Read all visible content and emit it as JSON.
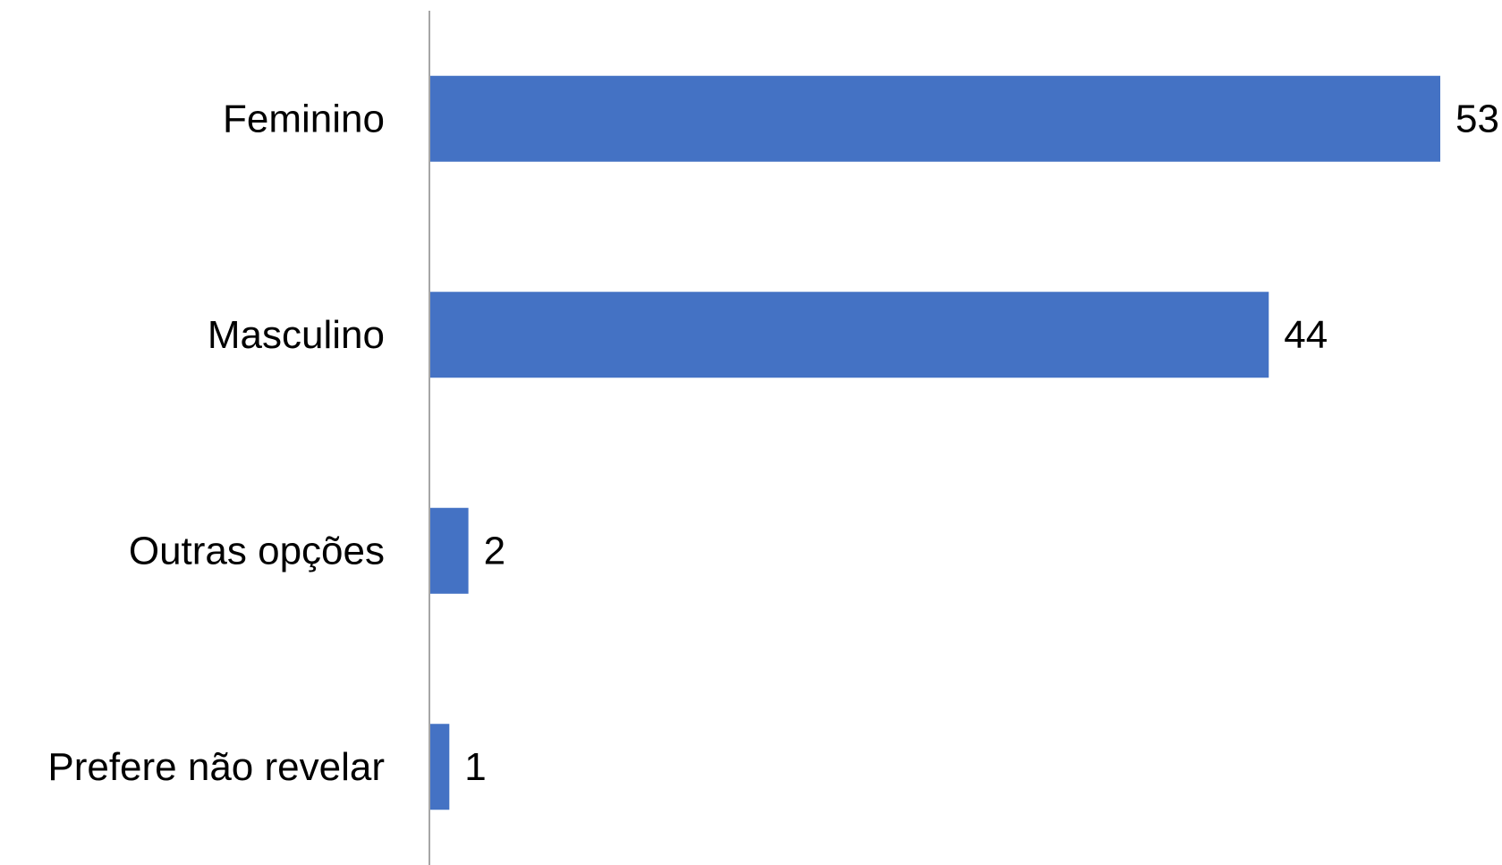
{
  "chart_data": {
    "type": "bar",
    "orientation": "horizontal",
    "categories": [
      "Feminino",
      "Masculino",
      "Outras opções",
      "Prefere não revelar"
    ],
    "values": [
      53,
      44,
      2,
      1
    ],
    "data_labels": [
      "53",
      "44",
      "2",
      "1"
    ],
    "title": "",
    "xlabel": "",
    "ylabel": "",
    "xlim": [
      0,
      53
    ],
    "grid": false,
    "legend": "none",
    "colors": {
      "bar": "#4472C4",
      "axis": "#A6A6A6",
      "text": "#000000"
    }
  }
}
